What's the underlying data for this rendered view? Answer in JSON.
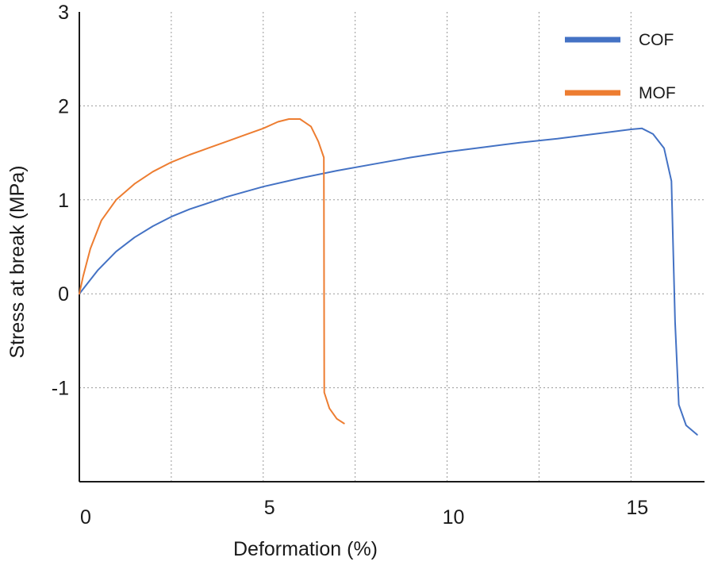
{
  "chart_data": {
    "type": "line",
    "title": "",
    "xlabel": "Deformation (%)",
    "ylabel": "Stress at break (MPa)",
    "xlim": [
      0,
      17
    ],
    "ylim": [
      -2,
      3
    ],
    "x_ticks": [
      {
        "value": 0,
        "label": "0"
      },
      {
        "value": 5,
        "label": "5"
      },
      {
        "value": 10,
        "label": "10"
      },
      {
        "value": 15,
        "label": "15"
      }
    ],
    "y_ticks": [
      {
        "value": 3,
        "label": "3"
      },
      {
        "value": 2,
        "label": "2"
      },
      {
        "value": 1,
        "label": "1"
      },
      {
        "value": 0,
        "label": "0"
      },
      {
        "value": -1,
        "label": "-1"
      }
    ],
    "grid": true,
    "legend_position": "top-right",
    "series": [
      {
        "name": "COF",
        "color": "#4472C4",
        "points": [
          [
            0,
            0
          ],
          [
            0.2,
            0.1
          ],
          [
            0.5,
            0.25
          ],
          [
            1,
            0.45
          ],
          [
            1.5,
            0.6
          ],
          [
            2,
            0.72
          ],
          [
            2.5,
            0.82
          ],
          [
            3,
            0.9
          ],
          [
            4,
            1.03
          ],
          [
            5,
            1.14
          ],
          [
            6,
            1.23
          ],
          [
            7,
            1.31
          ],
          [
            8,
            1.38
          ],
          [
            9,
            1.45
          ],
          [
            10,
            1.51
          ],
          [
            11,
            1.56
          ],
          [
            12,
            1.61
          ],
          [
            13,
            1.65
          ],
          [
            14,
            1.7
          ],
          [
            15,
            1.75
          ],
          [
            15.3,
            1.76
          ],
          [
            15.6,
            1.7
          ],
          [
            15.9,
            1.55
          ],
          [
            16.1,
            1.2
          ],
          [
            16.2,
            -0.3
          ],
          [
            16.3,
            -1.18
          ],
          [
            16.5,
            -1.4
          ],
          [
            16.8,
            -1.5
          ]
        ]
      },
      {
        "name": "MOF",
        "color": "#ED7D31",
        "points": [
          [
            0,
            0
          ],
          [
            0.1,
            0.18
          ],
          [
            0.3,
            0.48
          ],
          [
            0.6,
            0.78
          ],
          [
            1,
            1.0
          ],
          [
            1.5,
            1.17
          ],
          [
            2,
            1.3
          ],
          [
            2.5,
            1.4
          ],
          [
            3,
            1.48
          ],
          [
            3.5,
            1.55
          ],
          [
            4,
            1.62
          ],
          [
            4.5,
            1.69
          ],
          [
            5,
            1.76
          ],
          [
            5.4,
            1.83
          ],
          [
            5.7,
            1.86
          ],
          [
            6,
            1.86
          ],
          [
            6.3,
            1.78
          ],
          [
            6.5,
            1.62
          ],
          [
            6.65,
            1.45
          ],
          [
            6.66,
            -1.05
          ],
          [
            6.8,
            -1.22
          ],
          [
            7,
            -1.33
          ],
          [
            7.2,
            -1.38
          ]
        ]
      }
    ]
  }
}
